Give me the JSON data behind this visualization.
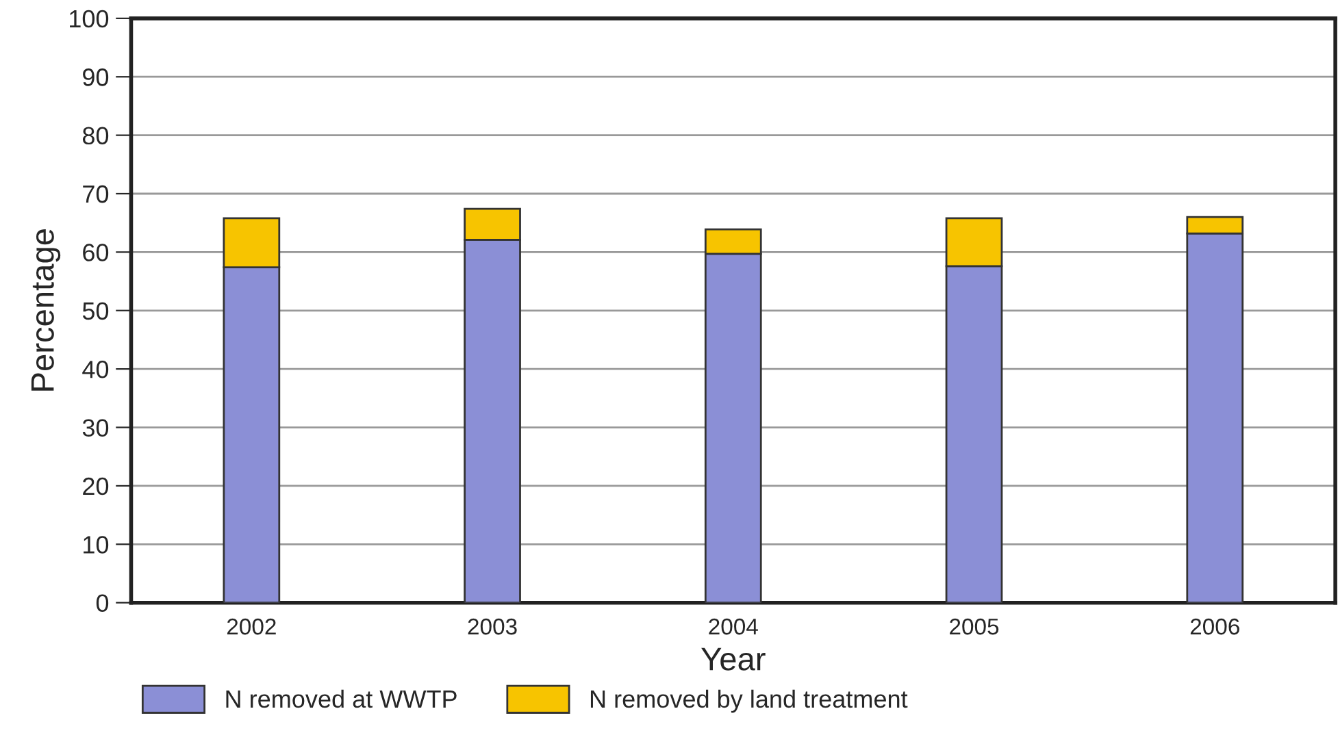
{
  "chart_data": {
    "type": "bar",
    "stacked": true,
    "xlabel": "Year",
    "ylabel": "Percentage",
    "categories": [
      "2002",
      "2003",
      "2004",
      "2005",
      "2006"
    ],
    "series": [
      {
        "name": "N removed at WWTP",
        "color": "#8b8fd6",
        "values": [
          57.4,
          62.1,
          59.7,
          57.6,
          63.2
        ]
      },
      {
        "name": "N removed by land treatment",
        "color": "#f7c400",
        "values": [
          8.4,
          5.3,
          4.2,
          8.2,
          2.8
        ]
      }
    ],
    "ylim": [
      0,
      100
    ],
    "yticks": [
      0,
      10,
      20,
      30,
      40,
      50,
      60,
      70,
      80,
      90,
      100
    ],
    "grid": "y",
    "legend": "bottom"
  }
}
